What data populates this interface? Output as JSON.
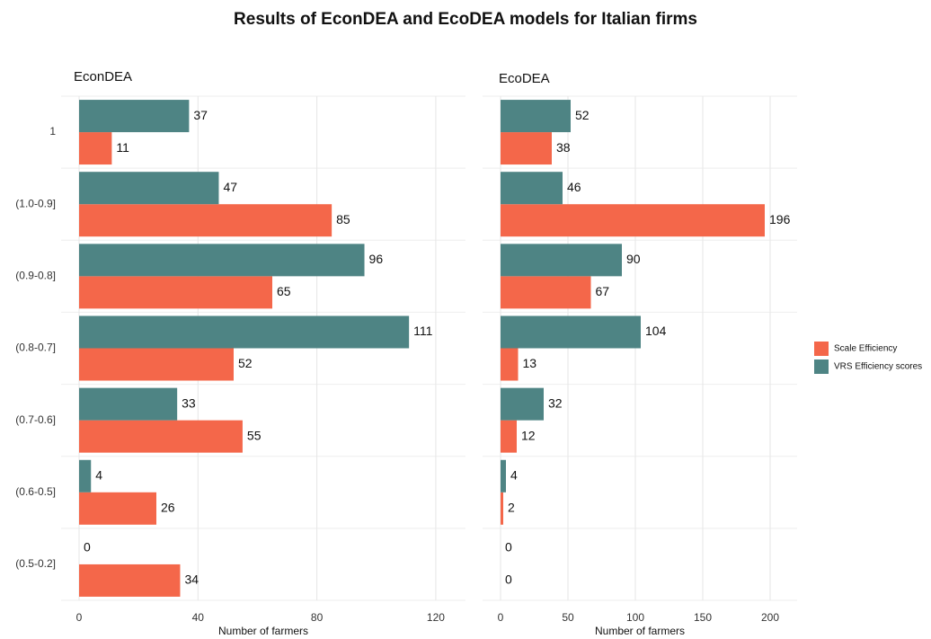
{
  "title": "Results of EconDEA and EcoDEA models for Italian firms",
  "chart_data": [
    {
      "type": "bar",
      "orientation": "horizontal",
      "subtitle": "EconDEA",
      "x_label": "Number of farmers",
      "categories": [
        "1",
        "(1.0-0.9]",
        "(0.9-0.8]",
        "(0.8-0.7]",
        "(0.7-0.6]",
        "(0.6-0.5]",
        "(0.5-0.2]"
      ],
      "series": [
        {
          "name": "Scale Efficiency",
          "color": "#f4674a",
          "values": [
            11,
            85,
            65,
            52,
            55,
            26,
            34
          ]
        },
        {
          "name": "VRS Efficiency scores",
          "color": "#4e8484",
          "values": [
            37,
            47,
            96,
            111,
            33,
            4,
            0
          ]
        }
      ],
      "xlim": [
        0,
        130
      ],
      "xticks": [
        0,
        40,
        80,
        120
      ],
      "grid": true
    },
    {
      "type": "bar",
      "orientation": "horizontal",
      "subtitle": "EcoDEA",
      "x_label": "Number of farmers",
      "series": [
        {
          "color": "#f4674a",
          "values": [
            38,
            196,
            67,
            13,
            12,
            2,
            0
          ]
        },
        {
          "color": "#4e8484",
          "values": [
            52,
            46,
            90,
            104,
            32,
            4,
            0
          ]
        }
      ],
      "xlim": [
        0,
        220
      ],
      "xticks": [
        0,
        50,
        100,
        150,
        200
      ],
      "grid": true
    }
  ]
}
